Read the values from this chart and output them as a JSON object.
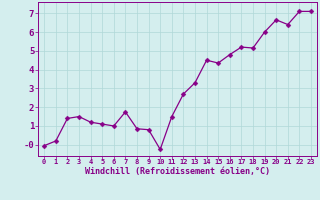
{
  "x": [
    0,
    1,
    2,
    3,
    4,
    5,
    6,
    7,
    8,
    9,
    10,
    11,
    12,
    13,
    14,
    15,
    16,
    17,
    18,
    19,
    20,
    21,
    22,
    23
  ],
  "y": [
    -0.05,
    0.2,
    1.4,
    1.5,
    1.2,
    1.1,
    1.0,
    1.75,
    0.85,
    0.8,
    -0.25,
    1.5,
    2.7,
    3.3,
    4.5,
    4.35,
    4.8,
    5.2,
    5.15,
    6.0,
    6.65,
    6.4,
    7.1,
    7.1
  ],
  "xlabel": "Windchill (Refroidissement éolien,°C)",
  "line_color": "#880088",
  "marker": "D",
  "marker_size": 2.5,
  "bg_color": "#d4eeee",
  "grid_color": "#b0d8d8",
  "tick_label_color": "#880088",
  "xlabel_color": "#880088",
  "ylim": [
    -0.6,
    7.6
  ],
  "xlim": [
    -0.5,
    23.5
  ],
  "yticks": [
    0,
    1,
    2,
    3,
    4,
    5,
    6,
    7
  ],
  "ytick_labels": [
    "-0",
    "1",
    "2",
    "3",
    "4",
    "5",
    "6",
    "7"
  ],
  "xticks": [
    0,
    1,
    2,
    3,
    4,
    5,
    6,
    7,
    8,
    9,
    10,
    11,
    12,
    13,
    14,
    15,
    16,
    17,
    18,
    19,
    20,
    21,
    22,
    23
  ],
  "tick_fontsize": 5.0,
  "ytick_fontsize": 6.5,
  "xlabel_fontsize": 6.0
}
